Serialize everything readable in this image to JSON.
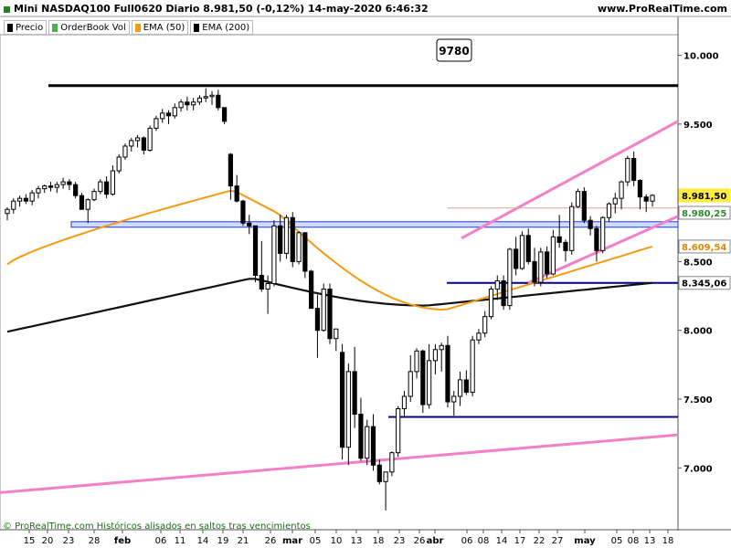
{
  "header": {
    "title": "Mini NASDAQ100 Full0620 Diario 8.981,50 (-0,12%) 14-may-2020 6:46:32",
    "site": "www.ProRealTime.com"
  },
  "legend": [
    {
      "label": "Precio",
      "color": "#000000"
    },
    {
      "label": "OrderBook Vol",
      "color": "#4caf50"
    },
    {
      "label": "EMA (50)",
      "color": "#f39c12"
    },
    {
      "label": "EMA (200)",
      "color": "#000000"
    }
  ],
  "footer": "© ProRealTime.com Históricos alisados en saltos tras vencimientos",
  "chart_data": {
    "type": "candlestick",
    "x_tick_labels": [
      "15",
      "20",
      "23",
      "28",
      "feb",
      "06",
      "11",
      "14",
      "19",
      "21",
      "26",
      "mar",
      "05",
      "10",
      "13",
      "18",
      "23",
      "26",
      "abr",
      "06",
      "08",
      "14",
      "17",
      "22",
      "27",
      "may",
      "05",
      "08",
      "13",
      "18"
    ],
    "y_tick_labels": [
      "10.000",
      "9.500",
      "9.000",
      "8.500",
      "8.000",
      "7.500",
      "7.000"
    ],
    "ylim": [
      6550,
      10150
    ],
    "candles": [
      [
        8850,
        8895,
        8800,
        8880
      ],
      [
        8880,
        8960,
        8850,
        8940
      ],
      [
        8940,
        8980,
        8900,
        8960
      ],
      [
        8960,
        8990,
        8920,
        8940
      ],
      [
        8940,
        9020,
        8910,
        9000
      ],
      [
        9000,
        9050,
        8960,
        9030
      ],
      [
        9030,
        9060,
        9000,
        9050
      ],
      [
        9050,
        9080,
        9010,
        9040
      ],
      [
        9040,
        9080,
        9000,
        9060
      ],
      [
        9060,
        9110,
        9030,
        9080
      ],
      [
        9080,
        9100,
        9020,
        9060
      ],
      [
        9060,
        9080,
        8960,
        8980
      ],
      [
        8980,
        9000,
        8900,
        8880
      ],
      [
        8880,
        8960,
        8780,
        8950
      ],
      [
        8950,
        9030,
        8940,
        9010
      ],
      [
        9010,
        9100,
        8990,
        9080
      ],
      [
        9080,
        9120,
        8960,
        8990
      ],
      [
        8990,
        9200,
        8980,
        9160
      ],
      [
        9160,
        9280,
        9140,
        9260
      ],
      [
        9260,
        9360,
        9240,
        9340
      ],
      [
        9340,
        9400,
        9300,
        9380
      ],
      [
        9380,
        9420,
        9330,
        9400
      ],
      [
        9400,
        9410,
        9280,
        9310
      ],
      [
        9310,
        9490,
        9300,
        9470
      ],
      [
        9470,
        9560,
        9450,
        9540
      ],
      [
        9540,
        9610,
        9510,
        9580
      ],
      [
        9580,
        9600,
        9500,
        9560
      ],
      [
        9560,
        9650,
        9540,
        9620
      ],
      [
        9620,
        9680,
        9590,
        9660
      ],
      [
        9660,
        9700,
        9600,
        9640
      ],
      [
        9640,
        9690,
        9600,
        9660
      ],
      [
        9660,
        9710,
        9640,
        9690
      ],
      [
        9690,
        9760,
        9660,
        9700
      ],
      [
        9700,
        9740,
        9640,
        9710
      ],
      [
        9710,
        9750,
        9600,
        9620
      ],
      [
        9620,
        9620,
        9500,
        9520
      ],
      [
        9280,
        9290,
        8950,
        9050
      ],
      [
        9050,
        9130,
        8930,
        8940
      ],
      [
        8940,
        8950,
        8760,
        8780
      ],
      [
        8780,
        8840,
        8700,
        8760
      ],
      [
        8760,
        8760,
        8350,
        8400
      ],
      [
        8400,
        8650,
        8280,
        8300
      ],
      [
        8300,
        8400,
        8120,
        8340
      ],
      [
        8340,
        8800,
        8320,
        8760
      ],
      [
        8760,
        8840,
        8500,
        8560
      ],
      [
        8560,
        8840,
        8520,
        8820
      ],
      [
        8820,
        8860,
        8460,
        8500
      ],
      [
        8500,
        8720,
        8480,
        8710
      ],
      [
        8710,
        8710,
        8380,
        8430
      ],
      [
        8430,
        8440,
        8160,
        8160
      ],
      [
        8160,
        8260,
        7800,
        8000
      ],
      [
        8000,
        8340,
        7990,
        8300
      ],
      [
        8300,
        8340,
        7900,
        7940
      ],
      [
        7940,
        7990,
        7850,
        8010
      ],
      [
        7840,
        7900,
        7060,
        7150
      ],
      [
        7150,
        7760,
        7020,
        7700
      ],
      [
        7700,
        7880,
        7290,
        7390
      ],
      [
        7390,
        7510,
        7050,
        7070
      ],
      [
        7070,
        7350,
        7020,
        7300
      ],
      [
        7300,
        7390,
        6980,
        7020
      ],
      [
        7020,
        7060,
        6880,
        6900
      ],
      [
        6900,
        6970,
        6690,
        6970
      ],
      [
        6970,
        7120,
        6940,
        7110
      ],
      [
        7110,
        7450,
        7080,
        7430
      ],
      [
        7430,
        7560,
        7370,
        7520
      ],
      [
        7520,
        7820,
        7480,
        7700
      ],
      [
        7700,
        7870,
        7650,
        7850
      ],
      [
        7850,
        7860,
        7400,
        7460
      ],
      [
        7460,
        7900,
        7430,
        7780
      ],
      [
        7780,
        7900,
        7680,
        7860
      ],
      [
        7860,
        7910,
        7700,
        7890
      ],
      [
        7890,
        7960,
        7440,
        7480
      ],
      [
        7480,
        7560,
        7380,
        7520
      ],
      [
        7520,
        7700,
        7450,
        7640
      ],
      [
        7640,
        7710,
        7530,
        7550
      ],
      [
        7550,
        7960,
        7520,
        7930
      ],
      [
        7930,
        8010,
        7900,
        7980
      ],
      [
        7980,
        8140,
        7950,
        8100
      ],
      [
        8100,
        8320,
        8080,
        8300
      ],
      [
        8300,
        8400,
        8220,
        8360
      ],
      [
        8360,
        8400,
        8150,
        8180
      ],
      [
        8180,
        8600,
        8150,
        8590
      ],
      [
        8590,
        8680,
        8400,
        8450
      ],
      [
        8450,
        8720,
        8440,
        8690
      ],
      [
        8690,
        8740,
        8480,
        8500
      ],
      [
        8500,
        8600,
        8320,
        8350
      ],
      [
        8350,
        8600,
        8320,
        8570
      ],
      [
        8570,
        8610,
        8380,
        8410
      ],
      [
        8410,
        8730,
        8400,
        8680
      ],
      [
        8680,
        8840,
        8600,
        8640
      ],
      [
        8640,
        8660,
        8500,
        8580
      ],
      [
        8580,
        8930,
        8550,
        8900
      ],
      [
        8900,
        9030,
        8890,
        9010
      ],
      [
        9010,
        9040,
        8780,
        8800
      ],
      [
        8800,
        8830,
        8690,
        8740
      ],
      [
        8740,
        8760,
        8500,
        8580
      ],
      [
        8580,
        8830,
        8560,
        8820
      ],
      [
        8820,
        8930,
        8790,
        8920
      ],
      [
        8920,
        9000,
        8850,
        8960
      ],
      [
        8960,
        9090,
        8880,
        9080
      ],
      [
        9080,
        9270,
        9050,
        9250
      ],
      [
        9250,
        9300,
        9050,
        9090
      ],
      [
        9090,
        9100,
        8880,
        8970
      ],
      [
        8970,
        8990,
        8860,
        8940
      ],
      [
        8940,
        8990,
        8900,
        8981.5
      ]
    ],
    "ema_50_label": "8.609,54",
    "ema_200_label": "8.345,06",
    "price_label": "8.981,50",
    "band_label": "8.980,25",
    "level_box_label": "9780",
    "levels": {
      "resistance": 9780,
      "band_low": 8750,
      "band_high": 8790,
      "support_1": 8345,
      "support_2": 7370
    },
    "price_line_overlay": 8890
  },
  "colors": {
    "up": "#ffffff",
    "down": "#000000",
    "ema50": "#f39c12",
    "ema200": "#111111",
    "trend": "#f280c8",
    "level": "#00008b",
    "band": "#c9d4ff"
  }
}
